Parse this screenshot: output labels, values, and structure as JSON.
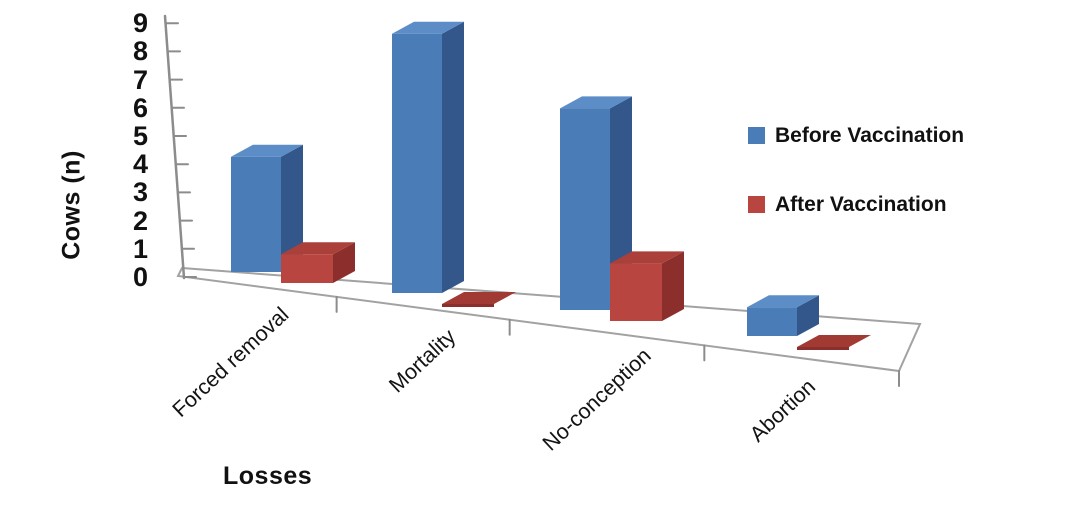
{
  "chart_data": {
    "type": "bar",
    "subtype": "3d-clustered-column",
    "title": "",
    "xlabel": "Losses",
    "ylabel": "Cows (n)",
    "categories": [
      "Forced removal",
      "Mortality",
      "No-conception",
      "Abortion"
    ],
    "series": [
      {
        "name": "Before Vaccination",
        "values": [
          4,
          9,
          7,
          1
        ],
        "color": "#4a7cb8"
      },
      {
        "name": "After Vaccination",
        "values": [
          1,
          0,
          2,
          0
        ],
        "color": "#b8453f"
      }
    ],
    "ylim": [
      0,
      9
    ],
    "yticks": [
      0,
      1,
      2,
      3,
      4,
      5,
      6,
      7,
      8,
      9
    ],
    "legend_position": "right",
    "grid": false,
    "background": "#ffffff"
  },
  "colors": {
    "before_front": "#4a7cb8",
    "before_top": "#5d8dc6",
    "before_side": "#33578b",
    "after_front": "#b8453f",
    "after_top": "#aa4039",
    "after_side": "#8c2f2c",
    "after_flat": "#a23a34",
    "axis_line": "#8c8c8c",
    "floor_line": "#a2a2a2",
    "text": "#111111"
  }
}
